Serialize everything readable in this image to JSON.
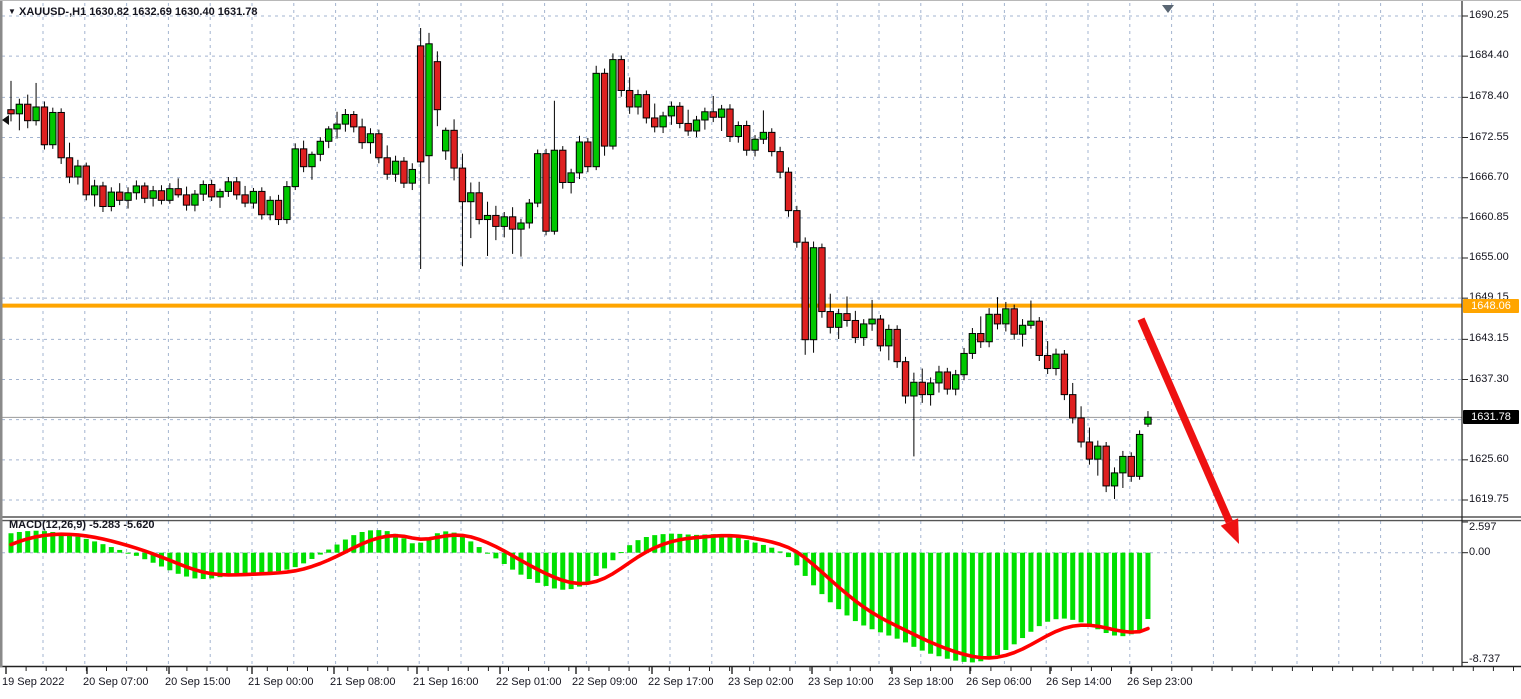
{
  "window": {
    "title_marker": "▼",
    "symbol_period": "XAUUSD-,H1",
    "ohlc_text": "1630.82 1632.69 1630.40 1631.78"
  },
  "colors": {
    "bull": "#00c800",
    "bear": "#de2020",
    "outline": "#000000",
    "grid": "#a3b4d0",
    "macd_bar": "#00e000",
    "signal": "#ff0000",
    "orange_line": "#ffa500",
    "arrow": "#ee1111",
    "price_line": "#9a9a9a",
    "label_bg_black": "#000000",
    "label_bg_orange": "#ffa500",
    "axis_text": "#15151f"
  },
  "chart_data": [
    {
      "type": "candlestick",
      "title": "XAUUSD-,H1",
      "ylabel": "price",
      "ylim": [
        1619.75,
        1690.25
      ],
      "grid": true,
      "price_axis_labels": [
        "1690.25",
        "1684.40",
        "1678.40",
        "1672.55",
        "1666.70",
        "1660.85",
        "1655.00",
        "1649.15",
        "1643.15",
        "1637.30",
        "1625.60",
        "1619.75"
      ],
      "price_axis_values": [
        1690.25,
        1684.4,
        1678.4,
        1672.55,
        1666.7,
        1660.85,
        1655.0,
        1649.15,
        1643.15,
        1637.3,
        1625.6,
        1619.75
      ],
      "hidden_grid_value": 1631.45,
      "hline": {
        "value": 1648.06,
        "label": "1648.06"
      },
      "current_price": {
        "value": 1631.78,
        "label": "1631.78"
      },
      "time_axis_labels": [
        "19 Sep 2022",
        "20 Sep 07:00",
        "20 Sep 15:00",
        "21 Sep 00:00",
        "21 Sep 08:00",
        "21 Sep 16:00",
        "22 Sep 01:00",
        "22 Sep 09:00",
        "22 Sep 17:00",
        "23 Sep 02:00",
        "23 Sep 10:00",
        "23 Sep 18:00",
        "26 Sep 06:00",
        "26 Sep 14:00",
        "26 Sep 23:00"
      ],
      "time_axis_x": [
        2,
        83,
        165,
        248,
        330,
        413,
        496,
        572,
        648,
        728,
        808,
        888,
        966,
        1046,
        1127
      ],
      "candles_ohlc": [
        [
          1676.6,
          1680.8,
          1674.9,
          1676.0
        ],
        [
          1676.0,
          1678.2,
          1673.6,
          1677.4
        ],
        [
          1677.4,
          1678.8,
          1673.9,
          1675.0
        ],
        [
          1675.0,
          1680.5,
          1674.3,
          1677.0
        ],
        [
          1677.0,
          1677.8,
          1670.8,
          1671.5
        ],
        [
          1671.5,
          1676.9,
          1670.9,
          1676.2
        ],
        [
          1676.2,
          1676.8,
          1668.7,
          1669.6
        ],
        [
          1669.6,
          1671.8,
          1665.9,
          1666.8
        ],
        [
          1666.8,
          1669.3,
          1665.7,
          1668.4
        ],
        [
          1668.4,
          1668.9,
          1663.4,
          1664.2
        ],
        [
          1664.2,
          1666.4,
          1662.5,
          1665.5
        ],
        [
          1665.5,
          1666.1,
          1661.7,
          1662.5
        ],
        [
          1662.5,
          1665.3,
          1661.8,
          1664.6
        ],
        [
          1664.6,
          1665.9,
          1662.7,
          1663.4
        ],
        [
          1663.4,
          1665.3,
          1662.2,
          1664.5
        ],
        [
          1664.5,
          1666.3,
          1663.5,
          1665.5
        ],
        [
          1665.5,
          1666.0,
          1663.0,
          1663.7
        ],
        [
          1663.7,
          1665.5,
          1662.5,
          1664.8
        ],
        [
          1664.8,
          1665.6,
          1662.8,
          1663.4
        ],
        [
          1663.4,
          1665.9,
          1662.9,
          1665.1
        ],
        [
          1665.1,
          1666.6,
          1663.8,
          1664.2
        ],
        [
          1664.2,
          1665.4,
          1661.9,
          1662.7
        ],
        [
          1662.7,
          1664.9,
          1661.8,
          1664.3
        ],
        [
          1664.3,
          1666.3,
          1663.3,
          1665.7
        ],
        [
          1665.7,
          1666.4,
          1663.3,
          1663.9
        ],
        [
          1663.9,
          1665.1,
          1662.3,
          1664.7
        ],
        [
          1664.7,
          1666.8,
          1663.9,
          1666.1
        ],
        [
          1666.1,
          1666.8,
          1663.5,
          1664.2
        ],
        [
          1664.2,
          1665.5,
          1662.4,
          1663.0
        ],
        [
          1663.0,
          1665.2,
          1662.2,
          1664.7
        ],
        [
          1664.7,
          1665.3,
          1660.6,
          1661.3
        ],
        [
          1661.3,
          1664.0,
          1660.5,
          1663.4
        ],
        [
          1663.4,
          1664.2,
          1659.8,
          1660.6
        ],
        [
          1660.6,
          1666.2,
          1660.0,
          1665.4
        ],
        [
          1665.4,
          1671.7,
          1664.9,
          1670.9
        ],
        [
          1670.9,
          1672.1,
          1667.5,
          1668.3
        ],
        [
          1668.3,
          1670.5,
          1666.4,
          1670.1
        ],
        [
          1670.1,
          1672.6,
          1669.1,
          1672.0
        ],
        [
          1672.0,
          1674.2,
          1671.0,
          1673.8
        ],
        [
          1673.8,
          1676.3,
          1672.4,
          1674.5
        ],
        [
          1674.5,
          1676.7,
          1673.4,
          1675.9
        ],
        [
          1675.9,
          1676.4,
          1673.3,
          1674.1
        ],
        [
          1674.1,
          1675.3,
          1670.9,
          1671.8
        ],
        [
          1671.8,
          1673.9,
          1670.2,
          1673.1
        ],
        [
          1673.1,
          1673.7,
          1668.8,
          1669.6
        ],
        [
          1669.6,
          1671.4,
          1666.4,
          1667.2
        ],
        [
          1667.2,
          1669.9,
          1666.1,
          1669.1
        ],
        [
          1669.1,
          1669.7,
          1665.2,
          1665.9
        ],
        [
          1665.9,
          1668.8,
          1664.9,
          1667.9
        ],
        [
          1685.9,
          1688.5,
          1653.4,
          1669.0
        ],
        [
          1669.9,
          1687.8,
          1665.8,
          1686.2
        ],
        [
          1683.6,
          1685.1,
          1674.2,
          1676.6
        ],
        [
          1670.6,
          1674.0,
          1669.3,
          1673.6
        ],
        [
          1673.6,
          1675.2,
          1666.3,
          1668.1
        ],
        [
          1668.1,
          1670.2,
          1653.8,
          1663.2
        ],
        [
          1663.2,
          1666.0,
          1657.9,
          1664.5
        ],
        [
          1664.5,
          1666.1,
          1659.9,
          1660.6
        ],
        [
          1660.6,
          1663.2,
          1655.3,
          1661.2
        ],
        [
          1661.2,
          1662.6,
          1657.6,
          1659.6
        ],
        [
          1659.6,
          1661.7,
          1658.0,
          1661.0
        ],
        [
          1661.0,
          1662.4,
          1655.6,
          1659.2
        ],
        [
          1659.2,
          1660.7,
          1655.2,
          1660.1
        ],
        [
          1660.1,
          1663.6,
          1659.3,
          1663.0
        ],
        [
          1663.0,
          1670.8,
          1662.4,
          1670.2
        ],
        [
          1670.2,
          1670.9,
          1658.3,
          1658.9
        ],
        [
          1658.9,
          1677.9,
          1658.4,
          1670.7
        ],
        [
          1670.7,
          1671.3,
          1665.1,
          1666.0
        ],
        [
          1666.0,
          1668.0,
          1664.4,
          1667.4
        ],
        [
          1667.4,
          1672.8,
          1666.5,
          1671.9
        ],
        [
          1671.9,
          1672.5,
          1667.5,
          1668.3
        ],
        [
          1668.3,
          1683.0,
          1667.8,
          1681.9
        ],
        [
          1681.9,
          1682.6,
          1669.9,
          1671.3
        ],
        [
          1671.3,
          1684.8,
          1670.8,
          1683.9
        ],
        [
          1683.9,
          1684.5,
          1678.5,
          1679.4
        ],
        [
          1679.4,
          1681.3,
          1676.0,
          1677.0
        ],
        [
          1677.0,
          1679.5,
          1675.9,
          1678.8
        ],
        [
          1678.8,
          1679.4,
          1674.6,
          1675.4
        ],
        [
          1675.4,
          1677.5,
          1673.3,
          1674.1
        ],
        [
          1674.1,
          1676.3,
          1673.2,
          1675.7
        ],
        [
          1675.7,
          1677.8,
          1674.4,
          1677.1
        ],
        [
          1677.1,
          1677.7,
          1673.9,
          1674.6
        ],
        [
          1674.6,
          1676.6,
          1672.8,
          1673.5
        ],
        [
          1673.5,
          1675.7,
          1672.6,
          1675.1
        ],
        [
          1675.1,
          1676.9,
          1673.7,
          1676.3
        ],
        [
          1676.3,
          1678.6,
          1674.8,
          1675.5
        ],
        [
          1675.5,
          1677.3,
          1673.5,
          1676.7
        ],
        [
          1676.7,
          1677.4,
          1671.9,
          1672.7
        ],
        [
          1672.7,
          1674.9,
          1671.8,
          1674.3
        ],
        [
          1674.3,
          1675.0,
          1669.9,
          1670.7
        ],
        [
          1670.7,
          1672.9,
          1669.8,
          1672.3
        ],
        [
          1672.3,
          1676.5,
          1671.6,
          1673.3
        ],
        [
          1673.3,
          1673.9,
          1669.8,
          1670.5
        ],
        [
          1670.5,
          1671.2,
          1666.6,
          1667.5
        ],
        [
          1667.5,
          1668.2,
          1661.0,
          1661.9
        ],
        [
          1661.9,
          1662.6,
          1656.5,
          1657.3
        ],
        [
          1657.3,
          1658.0,
          1640.9,
          1643.1
        ],
        [
          1643.1,
          1657.4,
          1641.2,
          1656.5
        ],
        [
          1656.5,
          1657.1,
          1646.3,
          1647.2
        ],
        [
          1647.2,
          1649.8,
          1644.0,
          1644.9
        ],
        [
          1644.9,
          1647.6,
          1643.2,
          1646.9
        ],
        [
          1646.9,
          1649.4,
          1645.0,
          1645.9
        ],
        [
          1645.9,
          1647.3,
          1642.6,
          1643.4
        ],
        [
          1643.4,
          1646.1,
          1642.2,
          1645.4
        ],
        [
          1645.4,
          1648.9,
          1644.4,
          1646.1
        ],
        [
          1646.1,
          1646.7,
          1641.4,
          1642.2
        ],
        [
          1642.2,
          1645.3,
          1640.1,
          1644.6
        ],
        [
          1644.6,
          1645.2,
          1639.0,
          1639.9
        ],
        [
          1639.9,
          1640.6,
          1633.8,
          1634.9
        ],
        [
          1634.9,
          1638.3,
          1626.1,
          1636.9
        ],
        [
          1636.9,
          1638.9,
          1633.9,
          1635.1
        ],
        [
          1635.1,
          1637.6,
          1633.5,
          1636.8
        ],
        [
          1636.8,
          1639.3,
          1635.4,
          1638.4
        ],
        [
          1638.4,
          1639.0,
          1635.1,
          1635.9
        ],
        [
          1635.9,
          1638.7,
          1635.0,
          1638.0
        ],
        [
          1638.0,
          1641.9,
          1637.2,
          1641.1
        ],
        [
          1641.1,
          1644.8,
          1640.3,
          1644.0
        ],
        [
          1644.0,
          1646.5,
          1641.9,
          1642.8
        ],
        [
          1642.8,
          1647.7,
          1642.0,
          1646.8
        ],
        [
          1646.8,
          1649.3,
          1644.6,
          1645.4
        ],
        [
          1645.4,
          1648.6,
          1644.3,
          1647.6
        ],
        [
          1647.6,
          1648.2,
          1643.1,
          1643.9
        ],
        [
          1643.9,
          1646.1,
          1642.1,
          1645.2
        ],
        [
          1645.2,
          1648.8,
          1644.7,
          1645.8
        ],
        [
          1645.8,
          1646.4,
          1640.0,
          1640.8
        ],
        [
          1640.8,
          1642.9,
          1638.1,
          1638.9
        ],
        [
          1638.9,
          1641.8,
          1637.9,
          1641.0
        ],
        [
          1641.0,
          1641.6,
          1634.3,
          1635.1
        ],
        [
          1635.1,
          1636.8,
          1630.9,
          1631.7
        ],
        [
          1631.7,
          1633.4,
          1627.4,
          1628.2
        ],
        [
          1628.2,
          1630.3,
          1624.9,
          1625.7
        ],
        [
          1625.7,
          1628.4,
          1623.3,
          1627.6
        ],
        [
          1627.6,
          1628.2,
          1620.9,
          1621.8
        ],
        [
          1621.8,
          1624.5,
          1619.9,
          1623.7
        ],
        [
          1623.7,
          1626.9,
          1621.5,
          1626.1
        ],
        [
          1626.1,
          1626.7,
          1622.4,
          1623.2
        ],
        [
          1623.2,
          1629.9,
          1622.7,
          1629.3
        ],
        [
          1630.8,
          1632.7,
          1630.4,
          1631.8
        ]
      ],
      "annotations": [
        {
          "type": "arrow",
          "color": "#ee1111",
          "x1": 1141,
          "y1": 318,
          "x2": 1239,
          "y2": 543
        }
      ],
      "chart_shift_marker_x": 1168
    },
    {
      "type": "bar",
      "title": "MACD(12,26,9)",
      "values_label": "-5.283 -5.620",
      "ylim": [
        -8.737,
        2.597
      ],
      "scale_labels": [
        "2.597",
        "0.00",
        "-8.737"
      ],
      "scale_values": [
        2.597,
        0.0,
        -8.737
      ],
      "macd_main": [
        1.55,
        1.65,
        1.72,
        1.75,
        1.72,
        1.65,
        1.55,
        1.42,
        1.28,
        1.1,
        0.9,
        0.68,
        0.45,
        0.22,
        0.0,
        -0.25,
        -0.52,
        -0.8,
        -1.1,
        -1.4,
        -1.68,
        -1.9,
        -2.05,
        -2.1,
        -2.05,
        -1.95,
        -1.85,
        -1.75,
        -1.68,
        -1.62,
        -1.6,
        -1.55,
        -1.48,
        -1.35,
        -1.15,
        -0.85,
        -0.5,
        -0.15,
        0.25,
        0.65,
        1.05,
        1.4,
        1.65,
        1.78,
        1.8,
        1.72,
        1.5,
        1.15,
        0.75,
        0.8,
        1.2,
        1.55,
        1.7,
        1.6,
        1.3,
        0.9,
        0.45,
        0.0,
        -0.45,
        -0.9,
        -1.35,
        -1.75,
        -2.1,
        -2.4,
        -2.65,
        -2.85,
        -2.95,
        -2.9,
        -2.7,
        -2.35,
        -1.85,
        -1.25,
        -0.6,
        0.05,
        0.6,
        1.0,
        1.25,
        1.4,
        1.48,
        1.52,
        1.5,
        1.45,
        1.42,
        1.45,
        1.48,
        1.45,
        1.35,
        1.2,
        1.0,
        0.8,
        0.62,
        0.4,
        0.1,
        -0.35,
        -1.0,
        -1.85,
        -2.6,
        -3.3,
        -3.95,
        -4.5,
        -5.0,
        -5.45,
        -5.8,
        -6.1,
        -6.35,
        -6.6,
        -6.85,
        -7.15,
        -7.5,
        -7.8,
        -8.05,
        -8.25,
        -8.45,
        -8.6,
        -8.7,
        -8.74,
        -8.65,
        -8.45,
        -8.15,
        -7.75,
        -7.3,
        -6.8,
        -6.3,
        -5.85,
        -5.5,
        -5.3,
        -5.25,
        -5.35,
        -5.55,
        -5.8,
        -6.1,
        -6.4,
        -6.6,
        -6.65,
        -6.5,
        -6.2,
        -5.283
      ],
      "signal_seed": 0.35,
      "signal_k": 0.25
    }
  ]
}
